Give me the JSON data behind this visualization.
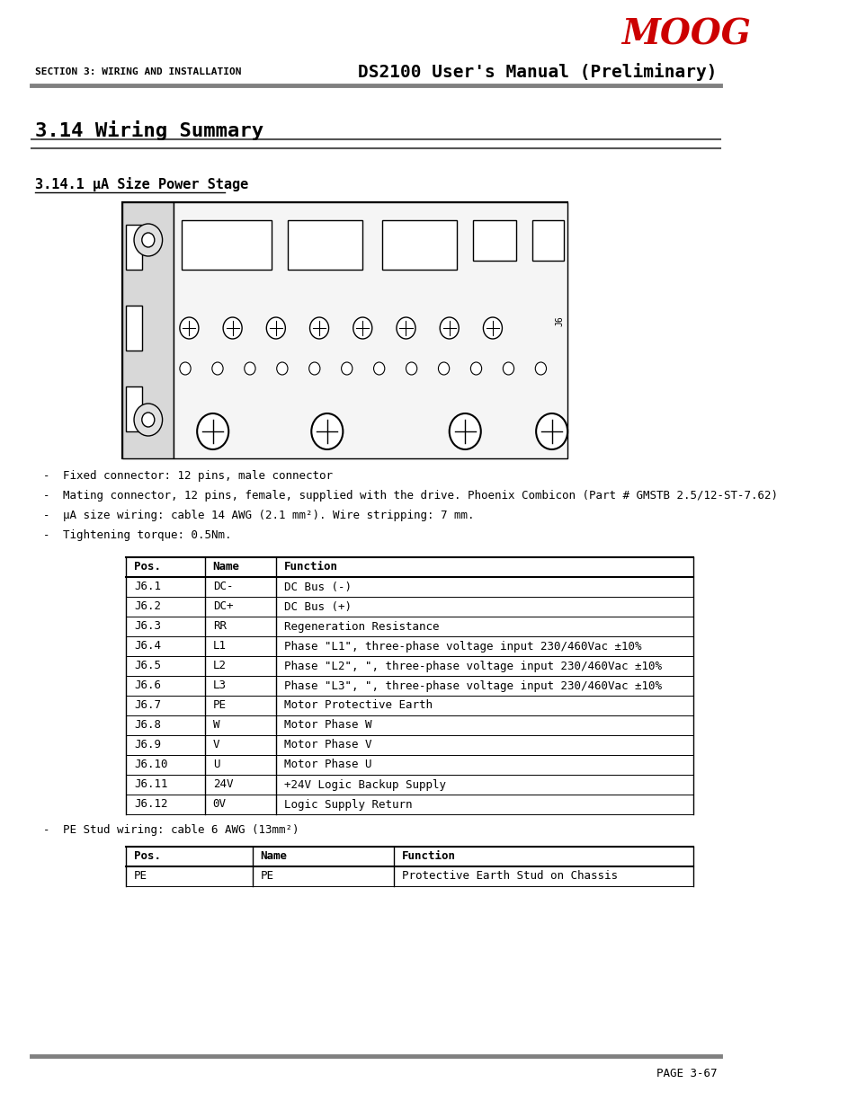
{
  "page_bg": "#ffffff",
  "header_line_color": "#808080",
  "footer_line_color": "#808080",
  "moog_color": "#cc0000",
  "moog_text": "MOOG",
  "section_label": "SECTION 3: WIRING AND INSTALLATION",
  "manual_title": "DS2100 User's Manual (Preliminary)",
  "section_title": "3.14 Wiring Summary",
  "subsection_title": "3.14.1 μA Size Power Stage",
  "bullet_points": [
    "Fixed connector: 12 pins, male connector",
    "Mating connector, 12 pins, female, supplied with the drive. Phoenix Combicon (Part # GMSTB 2.5/12-ST-7.62)",
    "μA size wiring: cable 14 AWG (2.1 mm²). Wire stripping: 7 mm.",
    "Tightening torque: 0.5Nm."
  ],
  "table1_headers": [
    "Pos.",
    "Name",
    "Function"
  ],
  "table1_rows": [
    [
      "J6.1",
      "DC-",
      "DC Bus (-)"
    ],
    [
      "J6.2",
      "DC+",
      "DC Bus (+)"
    ],
    [
      "J6.3",
      "RR",
      "Regeneration Resistance"
    ],
    [
      "J6.4",
      "L1",
      "Phase \"L1\", three-phase voltage input 230/460Vac ±10%"
    ],
    [
      "J6.5",
      "L2",
      "Phase \"L2\", \", three-phase voltage input 230/460Vac ±10%"
    ],
    [
      "J6.6",
      "L3",
      "Phase \"L3\", \", three-phase voltage input 230/460Vac ±10%"
    ],
    [
      "J6.7",
      "PE",
      "Motor Protective Earth"
    ],
    [
      "J6.8",
      "W",
      "Motor Phase W"
    ],
    [
      "J6.9",
      "V",
      "Motor Phase V"
    ],
    [
      "J6.10",
      "U",
      "Motor Phase U"
    ],
    [
      "J6.11",
      "24V",
      "+24V Logic Backup Supply"
    ],
    [
      "J6.12",
      "0V",
      "Logic Supply Return"
    ]
  ],
  "pe_bullet": "PE Stud wiring: cable 6 AWG (13mm²)",
  "table2_headers": [
    "Pos.",
    "Name",
    "Function"
  ],
  "table2_rows": [
    [
      "PE",
      "PE",
      "Protective Earth Stud on Chassis"
    ]
  ],
  "page_number": "PAGE 3-67"
}
